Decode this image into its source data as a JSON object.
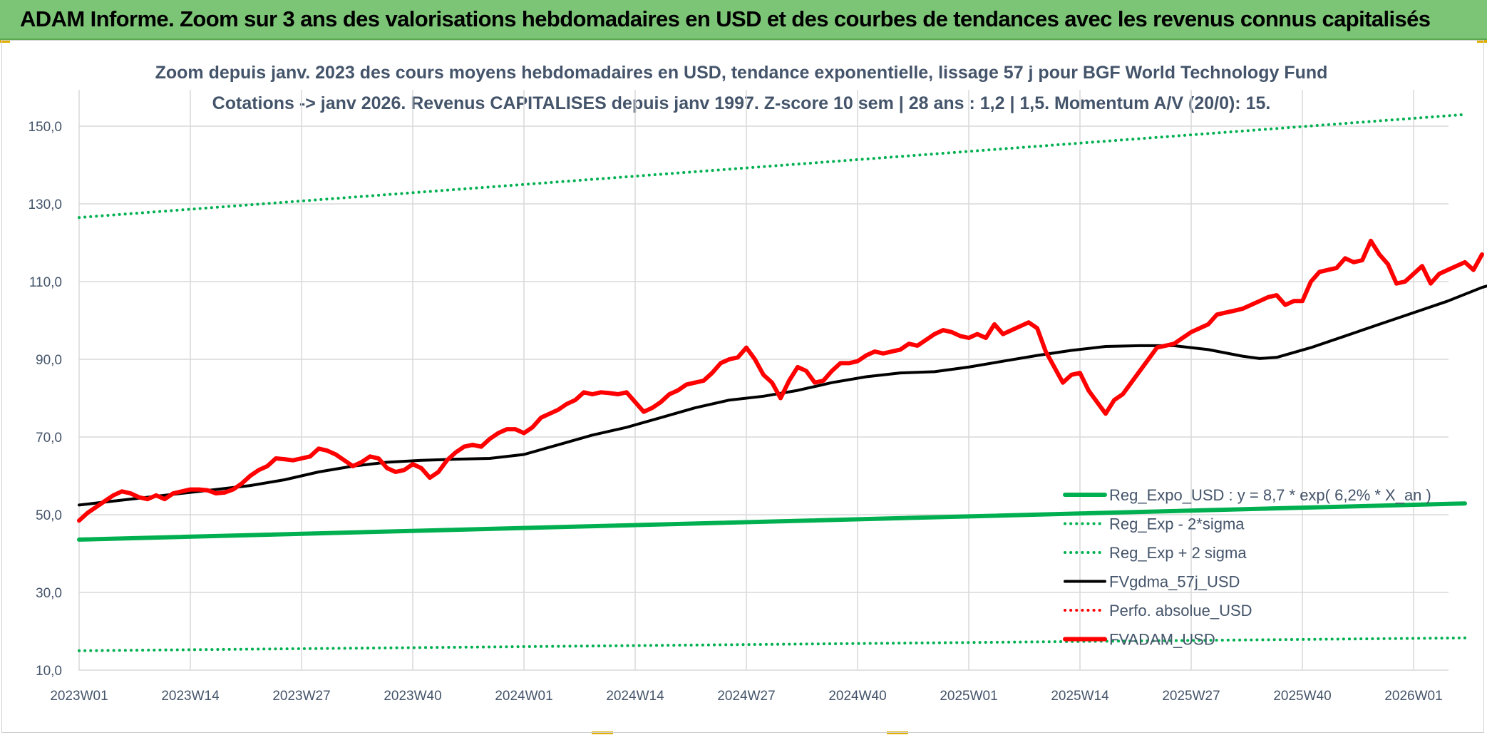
{
  "banner": {
    "title": "ADAM Informe. Zoom sur 3 ans des valorisations hebdomadaires en USD et des courbes de tendances avec les revenus connus capitalisés"
  },
  "chart_data": {
    "type": "line",
    "title_line1": "Zoom depuis janv. 2023 des cours moyens hebdomadaires en USD, tendance exponentielle, lissage 57 j pour BGF World Technology Fund",
    "title_line2": "Cotations -> janv 2026. Revenus CAPITALISES depuis janv 1997. Z-score 10 sem | 28 ans : 1,2 | 1,5. Momentum A/V (20/0): 15.",
    "x_tick_labels": [
      "2023W01",
      "2023W14",
      "2023W27",
      "2023W40",
      "2024W01",
      "2024W14",
      "2024W27",
      "2024W40",
      "2025W01",
      "2025W14",
      "2025W27",
      "2025W40",
      "2026W01"
    ],
    "x_range_weeks": [
      0,
      162
    ],
    "y_tick_labels": [
      "10,0",
      "30,0",
      "50,0",
      "70,0",
      "90,0",
      "110,0",
      "130,0",
      "150,0"
    ],
    "ylim": [
      10,
      160
    ],
    "grid": true,
    "legend_position": "bottom-right",
    "series": [
      {
        "name": "Reg_Expo_USD : y = 8,7 * exp( 6,2% *  X_an )",
        "color": "#00b050",
        "style": "solid-thick",
        "points": [
          [
            0,
            43.6
          ],
          [
            162,
            52.9
          ]
        ]
      },
      {
        "name": "Reg_Exp - 2*sigma",
        "color": "#00b050",
        "style": "dotted",
        "points": [
          [
            0,
            15.0
          ],
          [
            162,
            18.3
          ]
        ]
      },
      {
        "name": "Reg_Exp + 2 sigma",
        "color": "#00b050",
        "style": "dotted",
        "points": [
          [
            0,
            126.5
          ],
          [
            162,
            153.0
          ]
        ]
      },
      {
        "name": "FVgdma_57j_USD",
        "color": "#000000",
        "style": "solid",
        "points": [
          [
            0,
            52.5
          ],
          [
            4,
            53.5
          ],
          [
            8,
            54.5
          ],
          [
            12,
            55.5
          ],
          [
            16,
            56.5
          ],
          [
            20,
            57.5
          ],
          [
            24,
            59
          ],
          [
            28,
            61
          ],
          [
            32,
            62.5
          ],
          [
            36,
            63.5
          ],
          [
            40,
            64
          ],
          [
            44,
            64.3
          ],
          [
            48,
            64.5
          ],
          [
            52,
            65.5
          ],
          [
            56,
            68
          ],
          [
            60,
            70.5
          ],
          [
            64,
            72.5
          ],
          [
            68,
            75
          ],
          [
            72,
            77.5
          ],
          [
            76,
            79.5
          ],
          [
            80,
            80.5
          ],
          [
            84,
            82
          ],
          [
            88,
            84
          ],
          [
            92,
            85.5
          ],
          [
            96,
            86.5
          ],
          [
            100,
            86.8
          ],
          [
            104,
            88
          ],
          [
            108,
            89.5
          ],
          [
            112,
            91
          ],
          [
            116,
            92.3
          ],
          [
            120,
            93.3
          ],
          [
            124,
            93.5
          ],
          [
            128,
            93.5
          ],
          [
            132,
            92.5
          ],
          [
            136,
            90.8
          ],
          [
            138,
            90.2
          ],
          [
            140,
            90.5
          ],
          [
            144,
            93
          ],
          [
            148,
            96
          ],
          [
            152,
            99
          ],
          [
            156,
            102
          ],
          [
            160,
            105
          ],
          [
            164,
            108.5
          ],
          [
            168,
            111
          ],
          [
            170,
            112
          ],
          [
            174,
            112
          ],
          [
            178,
            113
          ],
          [
            182,
            114
          ],
          [
            184,
            115
          ]
        ]
      },
      {
        "name": "Perfo. absolue_USD",
        "color": "#ff0000",
        "style": "dotted",
        "points": []
      },
      {
        "name": "FVADAM_USD",
        "color": "#ff0000",
        "style": "solid-thick",
        "points": [
          [
            0,
            48.5
          ],
          [
            1,
            50.5
          ],
          [
            2,
            52
          ],
          [
            3,
            53.5
          ],
          [
            4,
            55
          ],
          [
            5,
            56
          ],
          [
            6,
            55.5
          ],
          [
            7,
            54.5
          ],
          [
            8,
            54
          ],
          [
            9,
            55
          ],
          [
            10,
            54
          ],
          [
            11,
            55.5
          ],
          [
            12,
            56
          ],
          [
            13,
            56.5
          ],
          [
            14,
            56.5
          ],
          [
            15,
            56.3
          ],
          [
            16,
            55.5
          ],
          [
            17,
            55.7
          ],
          [
            18,
            56.5
          ],
          [
            19,
            58
          ],
          [
            20,
            60
          ],
          [
            21,
            61.5
          ],
          [
            22,
            62.5
          ],
          [
            23,
            64.5
          ],
          [
            24,
            64.3
          ],
          [
            25,
            64
          ],
          [
            26,
            64.5
          ],
          [
            27,
            65
          ],
          [
            28,
            67
          ],
          [
            29,
            66.5
          ],
          [
            30,
            65.5
          ],
          [
            31,
            64
          ],
          [
            32,
            62.5
          ],
          [
            33,
            63.5
          ],
          [
            34,
            65
          ],
          [
            35,
            64.5
          ],
          [
            36,
            62
          ],
          [
            37,
            61
          ],
          [
            38,
            61.5
          ],
          [
            39,
            63
          ],
          [
            40,
            62
          ],
          [
            41,
            59.5
          ],
          [
            42,
            61
          ],
          [
            43,
            64
          ],
          [
            44,
            66
          ],
          [
            45,
            67.5
          ],
          [
            46,
            68
          ],
          [
            47,
            67.5
          ],
          [
            48,
            69.5
          ],
          [
            49,
            71
          ],
          [
            50,
            72
          ],
          [
            51,
            72
          ],
          [
            52,
            71
          ],
          [
            53,
            72.5
          ],
          [
            54,
            75
          ],
          [
            55,
            76
          ],
          [
            56,
            77
          ],
          [
            57,
            78.5
          ],
          [
            58,
            79.5
          ],
          [
            59,
            81.5
          ],
          [
            60,
            81
          ],
          [
            61,
            81.5
          ],
          [
            62,
            81.3
          ],
          [
            63,
            81
          ],
          [
            64,
            81.5
          ],
          [
            65,
            79
          ],
          [
            66,
            76.5
          ],
          [
            67,
            77.5
          ],
          [
            68,
            79
          ],
          [
            69,
            81
          ],
          [
            70,
            82
          ],
          [
            71,
            83.5
          ],
          [
            72,
            84
          ],
          [
            73,
            84.5
          ],
          [
            74,
            86.5
          ],
          [
            75,
            89
          ],
          [
            76,
            90
          ],
          [
            77,
            90.5
          ],
          [
            78,
            93
          ],
          [
            79,
            90
          ],
          [
            80,
            86
          ],
          [
            81,
            84
          ],
          [
            82,
            80
          ],
          [
            83,
            84.5
          ],
          [
            84,
            88
          ],
          [
            85,
            87
          ],
          [
            86,
            84
          ],
          [
            87,
            84.5
          ],
          [
            88,
            87
          ],
          [
            89,
            89
          ],
          [
            90,
            89
          ],
          [
            91,
            89.5
          ],
          [
            92,
            91
          ],
          [
            93,
            92
          ],
          [
            94,
            91.5
          ],
          [
            95,
            92
          ],
          [
            96,
            92.5
          ],
          [
            97,
            94
          ],
          [
            98,
            93.5
          ],
          [
            99,
            95
          ],
          [
            100,
            96.5
          ],
          [
            101,
            97.5
          ],
          [
            102,
            97
          ],
          [
            103,
            96
          ],
          [
            104,
            95.5
          ],
          [
            105,
            96.5
          ],
          [
            106,
            95.5
          ],
          [
            107,
            99
          ],
          [
            108,
            96.5
          ],
          [
            109,
            97.5
          ],
          [
            110,
            98.5
          ],
          [
            111,
            99.5
          ],
          [
            112,
            98
          ],
          [
            113,
            92
          ],
          [
            114,
            88
          ],
          [
            115,
            84
          ],
          [
            116,
            86
          ],
          [
            117,
            86.5
          ],
          [
            118,
            82
          ],
          [
            119,
            79
          ],
          [
            120,
            76
          ],
          [
            121,
            79.5
          ],
          [
            122,
            81
          ],
          [
            123,
            84
          ],
          [
            124,
            87
          ],
          [
            125,
            90
          ],
          [
            126,
            93
          ],
          [
            127,
            93.5
          ],
          [
            128,
            94
          ],
          [
            129,
            95.5
          ],
          [
            130,
            97
          ],
          [
            131,
            98
          ],
          [
            132,
            99
          ],
          [
            133,
            101.5
          ],
          [
            134,
            102
          ],
          [
            135,
            102.5
          ],
          [
            136,
            103
          ],
          [
            137,
            104
          ],
          [
            138,
            105
          ],
          [
            139,
            106
          ],
          [
            140,
            106.5
          ],
          [
            141,
            104
          ],
          [
            142,
            105
          ],
          [
            143,
            105
          ],
          [
            144,
            110
          ],
          [
            145,
            112.5
          ],
          [
            146,
            113
          ],
          [
            147,
            113.5
          ],
          [
            148,
            116
          ],
          [
            149,
            115
          ],
          [
            150,
            115.5
          ],
          [
            151,
            120.5
          ],
          [
            152,
            117
          ],
          [
            153,
            114.5
          ],
          [
            154,
            109.5
          ],
          [
            155,
            110
          ],
          [
            156,
            112
          ],
          [
            157,
            114
          ],
          [
            158,
            109.5
          ],
          [
            159,
            112
          ],
          [
            160,
            113
          ],
          [
            161,
            114
          ],
          [
            162,
            115
          ],
          [
            163,
            113
          ],
          [
            164,
            117
          ]
        ]
      }
    ]
  }
}
